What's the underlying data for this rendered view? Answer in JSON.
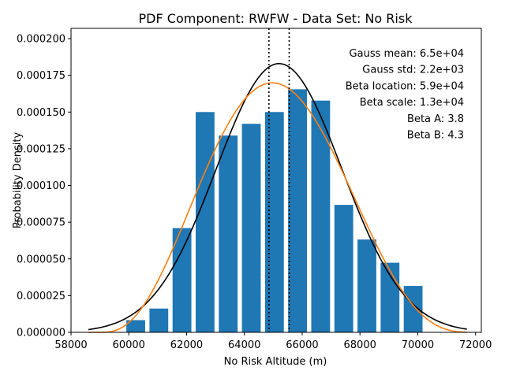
{
  "chart_data": {
    "type": "bar",
    "title": "PDF Component: RWFW - Data Set: No Risk",
    "xlabel": "No Risk Altitude (m)",
    "ylabel": "Probability Density",
    "xlim": [
      58000,
      72200
    ],
    "ylim": [
      0,
      0.000207
    ],
    "x_ticks": [
      58000,
      60000,
      62000,
      64000,
      66000,
      68000,
      70000,
      72000
    ],
    "x_tick_labels": [
      "58000",
      "60000",
      "62000",
      "64000",
      "66000",
      "68000",
      "70000",
      "72000"
    ],
    "y_ticks": [
      0,
      2.5e-05,
      5e-05,
      7.5e-05,
      0.0001,
      0.000125,
      0.00015,
      0.000175,
      0.0002
    ],
    "y_tick_labels": [
      "0.000000",
      "0.000025",
      "0.000050",
      "0.000075",
      "0.000100",
      "0.000125",
      "0.000150",
      "0.000175",
      "0.000200"
    ],
    "bars": {
      "color": "#1f77b4",
      "bin_width": 800,
      "bar_width": 650,
      "centers": [
        60240,
        61040,
        61840,
        62640,
        63440,
        64240,
        65040,
        65840,
        66640,
        67440,
        68240,
        69040,
        69840
      ],
      "values": [
        8.3e-06,
        1.62e-05,
        7.1e-05,
        0.00015,
        0.000134,
        0.000142,
        0.00015,
        0.0001655,
        0.0001578,
        8.68e-05,
        6.32e-05,
        4.74e-05,
        3.16e-05
      ]
    },
    "gauss": {
      "color": "#000000",
      "mean": 65200,
      "std": 2180,
      "x_range": [
        58600,
        71700
      ]
    },
    "beta": {
      "color": "#ff7f0e",
      "location": 59000,
      "scale": 13000,
      "a": 3.8,
      "b": 4.3,
      "x_range": [
        58600,
        71700
      ]
    },
    "vlines": [
      64850,
      65550
    ],
    "annotations": [
      "Gauss mean: 6.5e+04",
      "Gauss std: 2.2e+03",
      "Beta location: 5.9e+04",
      "Beta scale: 1.3e+04",
      "Beta A: 3.8",
      "Beta B: 4.3"
    ]
  }
}
